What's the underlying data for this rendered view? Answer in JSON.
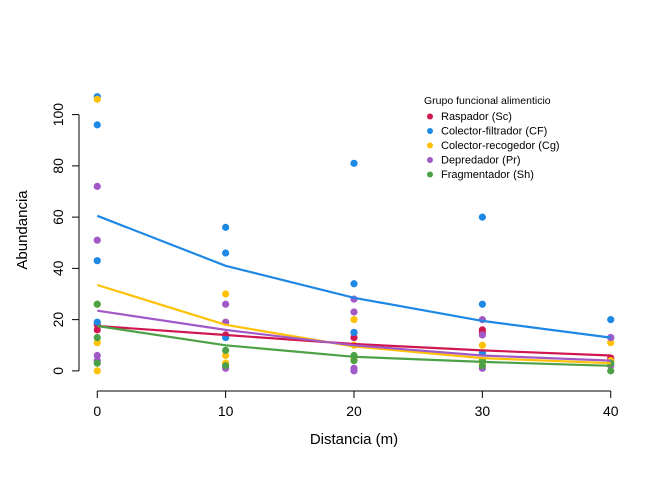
{
  "chart_data": {
    "type": "scatter",
    "title": "",
    "xlabel": "Distancia (m)",
    "ylabel": "Abundancia",
    "xlim": [
      -1.5,
      41.5
    ],
    "ylim": [
      -2,
      110
    ],
    "xticks": [
      0,
      10,
      20,
      30,
      40
    ],
    "yticks": [
      0,
      20,
      40,
      60,
      80,
      100
    ],
    "grid": false,
    "legend": {
      "title": "Grupo funcional alimenticio",
      "placement": "top-right"
    },
    "series": [
      {
        "name": "Raspador (Sc)",
        "color": "#D0174F",
        "points": [
          [
            0,
            16
          ],
          [
            0,
            18
          ],
          [
            10,
            14
          ],
          [
            20,
            13
          ],
          [
            20,
            15
          ],
          [
            30,
            16
          ],
          [
            30,
            15
          ],
          [
            40,
            4
          ],
          [
            40,
            5
          ]
        ],
        "fit": [
          [
            0,
            17.5
          ],
          [
            10,
            14
          ],
          [
            20,
            10.5
          ],
          [
            30,
            8
          ],
          [
            40,
            6
          ]
        ]
      },
      {
        "name": "Colector-filtrador (CF)",
        "color": "#1E88E5",
        "points": [
          [
            0,
            107
          ],
          [
            0,
            96
          ],
          [
            0,
            43
          ],
          [
            0,
            19
          ],
          [
            10,
            56
          ],
          [
            10,
            46
          ],
          [
            10,
            13
          ],
          [
            20,
            81
          ],
          [
            20,
            34
          ],
          [
            20,
            15
          ],
          [
            30,
            60
          ],
          [
            30,
            26
          ],
          [
            30,
            7
          ],
          [
            40,
            20
          ],
          [
            40,
            13
          ]
        ],
        "fit": [
          [
            0,
            60.5
          ],
          [
            10,
            41
          ],
          [
            20,
            28.5
          ],
          [
            30,
            19.5
          ],
          [
            40,
            13
          ]
        ]
      },
      {
        "name": "Colector-recogedor (Cg)",
        "color": "#FFC107",
        "points": [
          [
            0,
            106
          ],
          [
            0,
            26
          ],
          [
            0,
            11
          ],
          [
            0,
            0
          ],
          [
            10,
            30
          ],
          [
            10,
            19
          ],
          [
            10,
            6
          ],
          [
            10,
            3
          ],
          [
            20,
            20
          ],
          [
            20,
            10
          ],
          [
            20,
            5
          ],
          [
            30,
            10
          ],
          [
            30,
            3
          ],
          [
            40,
            11
          ],
          [
            40,
            4
          ]
        ],
        "fit": [
          [
            0,
            33.5
          ],
          [
            10,
            18
          ],
          [
            20,
            9.5
          ],
          [
            30,
            5
          ],
          [
            40,
            3
          ]
        ]
      },
      {
        "name": "Depredador (Pr)",
        "color": "#A259C8",
        "points": [
          [
            0,
            72
          ],
          [
            0,
            51
          ],
          [
            0,
            6
          ],
          [
            0,
            4
          ],
          [
            10,
            26
          ],
          [
            10,
            19
          ],
          [
            10,
            1
          ],
          [
            20,
            28
          ],
          [
            20,
            23
          ],
          [
            20,
            1
          ],
          [
            20,
            0
          ],
          [
            30,
            20
          ],
          [
            30,
            14
          ],
          [
            30,
            1
          ],
          [
            40,
            13
          ],
          [
            40,
            2
          ]
        ],
        "fit": [
          [
            0,
            23.5
          ],
          [
            10,
            16
          ],
          [
            20,
            10
          ],
          [
            30,
            6
          ],
          [
            40,
            4
          ]
        ]
      },
      {
        "name": "Fragmentador (Sh)",
        "color": "#4CA146",
        "points": [
          [
            0,
            26
          ],
          [
            0,
            13
          ],
          [
            0,
            3
          ],
          [
            10,
            8
          ],
          [
            10,
            2
          ],
          [
            20,
            6
          ],
          [
            20,
            4
          ],
          [
            30,
            4
          ],
          [
            30,
            2
          ],
          [
            40,
            3
          ],
          [
            40,
            0
          ]
        ],
        "fit": [
          [
            0,
            17.5
          ],
          [
            10,
            10
          ],
          [
            20,
            5.5
          ],
          [
            30,
            3.5
          ],
          [
            40,
            2
          ]
        ]
      }
    ]
  }
}
